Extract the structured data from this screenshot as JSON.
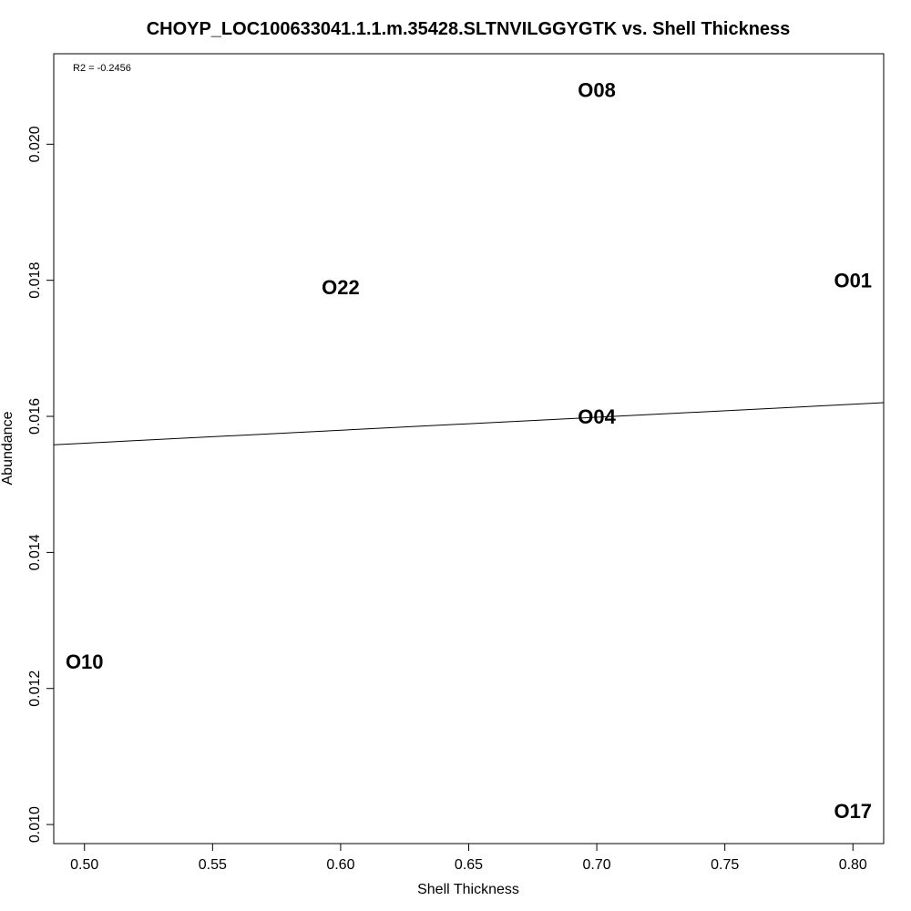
{
  "chart_data": {
    "type": "scatter",
    "title": "CHOYP_LOC100633041.1.1.m.35428.SLTNVILGGYGTK vs. Shell Thickness",
    "xlabel": "Shell Thickness",
    "ylabel": "Abundance",
    "xlim": [
      0.488,
      0.812
    ],
    "ylim": [
      0.00972,
      0.02133
    ],
    "xticks": [
      0.5,
      0.55,
      0.6,
      0.65,
      0.7,
      0.75,
      0.8
    ],
    "xtick_labels": [
      "0.50",
      "0.55",
      "0.60",
      "0.65",
      "0.70",
      "0.75",
      "0.80"
    ],
    "yticks": [
      0.01,
      0.012,
      0.014,
      0.016,
      0.018,
      0.02
    ],
    "ytick_labels": [
      "0.010",
      "0.012",
      "0.014",
      "0.016",
      "0.018",
      "0.020"
    ],
    "grid": false,
    "points": [
      {
        "label": "O08",
        "x": 0.7,
        "y": 0.0208
      },
      {
        "label": "O22",
        "x": 0.6,
        "y": 0.0179
      },
      {
        "label": "O01",
        "x": 0.8,
        "y": 0.018
      },
      {
        "label": "O04",
        "x": 0.7,
        "y": 0.016
      },
      {
        "label": "O10",
        "x": 0.5,
        "y": 0.0124
      },
      {
        "label": "O17",
        "x": 0.8,
        "y": 0.0102
      }
    ],
    "regression_line": {
      "intercept": 0.01465,
      "slope": 0.00191
    },
    "annotation": "R2 = -0.2456"
  }
}
